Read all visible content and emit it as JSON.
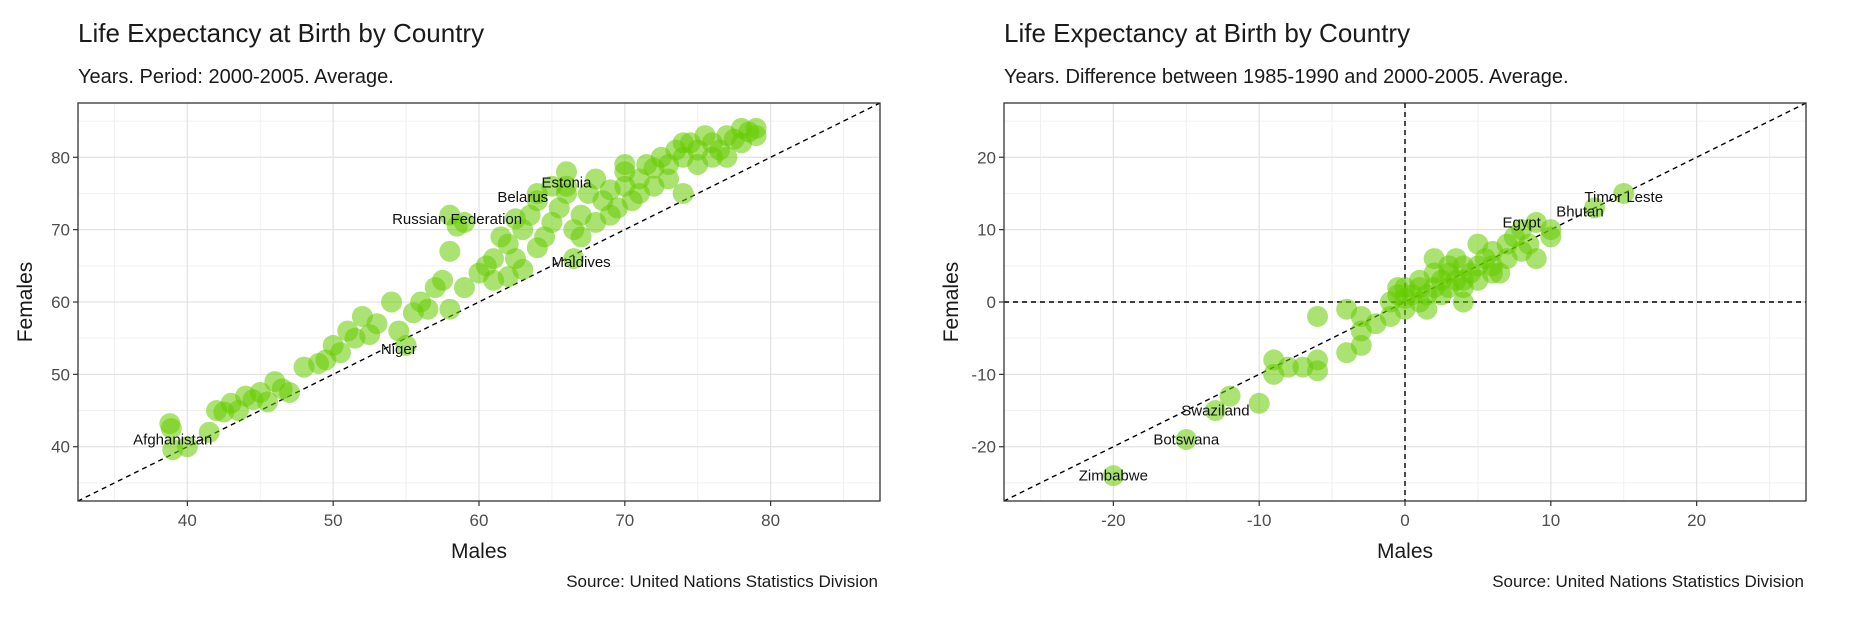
{
  "chart_data": [
    {
      "type": "scatter",
      "title": "Life Expectancy at Birth by Country",
      "subtitle": "Years. Period: 2000-2005. Average.",
      "caption": "Source: United Nations Statistics Division",
      "xlabel": "Males",
      "ylabel": "Females",
      "xlim": [
        32.5,
        87.5
      ],
      "ylim": [
        32.5,
        87.5
      ],
      "xticks": [
        40,
        50,
        60,
        70,
        80
      ],
      "yticks": [
        40,
        50,
        60,
        70,
        80
      ],
      "grid": true,
      "reference_lines": [
        {
          "type": "diagonal",
          "style": "dashed",
          "slope": 1,
          "intercept": 0
        }
      ],
      "point_color": "#66cc00",
      "points": [
        [
          38.8,
          43.2
        ],
        [
          38.9,
          42.5
        ],
        [
          39.0,
          39.6
        ],
        [
          40.0,
          40.0
        ],
        [
          41.5,
          42.0
        ],
        [
          42.0,
          45.0
        ],
        [
          42.5,
          44.8
        ],
        [
          43.0,
          46.0
        ],
        [
          43.5,
          45.0
        ],
        [
          44.0,
          47.0
        ],
        [
          44.5,
          46.5
        ],
        [
          45.0,
          47.5
        ],
        [
          45.5,
          46.2
        ],
        [
          46.0,
          49.0
        ],
        [
          46.5,
          48.0
        ],
        [
          47.0,
          47.5
        ],
        [
          48.0,
          51.0
        ],
        [
          49.0,
          51.5
        ],
        [
          49.5,
          52.0
        ],
        [
          50.0,
          54.0
        ],
        [
          50.5,
          53.0
        ],
        [
          51.0,
          56.0
        ],
        [
          51.5,
          55.0
        ],
        [
          52.0,
          58.0
        ],
        [
          52.5,
          55.5
        ],
        [
          53.0,
          57.0
        ],
        [
          54.0,
          60.0
        ],
        [
          54.5,
          56.0
        ],
        [
          55.0,
          54.0
        ],
        [
          55.5,
          58.5
        ],
        [
          56.0,
          60.0
        ],
        [
          56.5,
          59.0
        ],
        [
          57.0,
          62.0
        ],
        [
          57.5,
          63.0
        ],
        [
          58.0,
          59.0
        ],
        [
          58.0,
          72.0
        ],
        [
          58.0,
          67.0
        ],
        [
          59.0,
          71.0
        ],
        [
          59.0,
          62.0
        ],
        [
          60.0,
          64.0
        ],
        [
          60.5,
          65.0
        ],
        [
          61.0,
          66.0
        ],
        [
          61.0,
          63.0
        ],
        [
          61.5,
          69.0
        ],
        [
          62.0,
          68.0
        ],
        [
          62.0,
          63.5
        ],
        [
          62.5,
          66.0
        ],
        [
          63.0,
          70.0
        ],
        [
          63.0,
          64.5
        ],
        [
          63.5,
          72.0
        ],
        [
          64.0,
          74.0
        ],
        [
          64.0,
          67.5
        ],
        [
          64.5,
          69.0
        ],
        [
          65.0,
          71.0
        ],
        [
          65.0,
          76.0
        ],
        [
          65.5,
          73.0
        ],
        [
          66.0,
          78.0
        ],
        [
          66.0,
          75.0
        ],
        [
          66.5,
          70.0
        ],
        [
          66.5,
          66.0
        ],
        [
          67.0,
          72.0
        ],
        [
          67.0,
          69.0
        ],
        [
          67.5,
          75.0
        ],
        [
          68.0,
          71.0
        ],
        [
          68.0,
          77.0
        ],
        [
          68.5,
          74.0
        ],
        [
          69.0,
          72.0
        ],
        [
          69.0,
          75.5
        ],
        [
          69.5,
          73.0
        ],
        [
          70.0,
          76.0
        ],
        [
          70.0,
          78.0
        ],
        [
          70.5,
          74.0
        ],
        [
          71.0,
          75.0
        ],
        [
          71.0,
          77.0
        ],
        [
          71.5,
          79.0
        ],
        [
          72.0,
          76.0
        ],
        [
          72.0,
          78.5
        ],
        [
          72.5,
          80.0
        ],
        [
          73.0,
          77.0
        ],
        [
          73.0,
          79.0
        ],
        [
          73.5,
          81.0
        ],
        [
          74.0,
          75.0
        ],
        [
          74.0,
          80.0
        ],
        [
          74.5,
          82.0
        ],
        [
          75.0,
          79.0
        ],
        [
          75.0,
          81.0
        ],
        [
          75.5,
          83.0
        ],
        [
          76.0,
          80.0
        ],
        [
          76.0,
          82.0
        ],
        [
          76.5,
          81.0
        ],
        [
          77.0,
          83.0
        ],
        [
          77.0,
          80.0
        ],
        [
          77.5,
          82.5
        ],
        [
          78.0,
          84.0
        ],
        [
          78.0,
          82.0
        ],
        [
          78.5,
          83.5
        ],
        [
          79.0,
          83.0
        ],
        [
          79.0,
          84.0
        ],
        [
          58.5,
          70.5
        ],
        [
          62.5,
          71.5
        ],
        [
          64.0,
          75.0
        ],
        [
          66.0,
          76.0
        ],
        [
          70.0,
          79.0
        ],
        [
          74.0,
          82.0
        ]
      ],
      "labels": [
        {
          "text": "Afghanistan",
          "x": 39.0,
          "y": 41.0
        },
        {
          "text": "Niger",
          "x": 54.5,
          "y": 53.5
        },
        {
          "text": "Russian Federation",
          "x": 58.5,
          "y": 71.5
        },
        {
          "text": "Belarus",
          "x": 63.0,
          "y": 74.5
        },
        {
          "text": "Estonia",
          "x": 66.0,
          "y": 76.5
        },
        {
          "text": "Maldives",
          "x": 67.0,
          "y": 65.5
        }
      ]
    },
    {
      "type": "scatter",
      "title": "Life Expectancy at Birth by Country",
      "subtitle": "Years. Difference between 1985-1990 and 2000-2005. Average.",
      "caption": "Source: United Nations Statistics Division",
      "xlabel": "Males",
      "ylabel": "Females",
      "xlim": [
        -27.5,
        27.5
      ],
      "ylim": [
        -27.5,
        27.5
      ],
      "xticks": [
        -20,
        -10,
        0,
        10,
        20
      ],
      "yticks": [
        -20,
        -10,
        0,
        10,
        20
      ],
      "grid": true,
      "reference_lines": [
        {
          "type": "diagonal",
          "style": "dashed",
          "slope": 1,
          "intercept": 0
        },
        {
          "type": "vline",
          "style": "dashed",
          "x": 0
        },
        {
          "type": "hline",
          "style": "dashed",
          "y": 0
        }
      ],
      "point_color": "#66cc00",
      "points": [
        [
          -20.0,
          -24.0
        ],
        [
          -15.0,
          -19.0
        ],
        [
          -13.0,
          -15.0
        ],
        [
          -12.0,
          -13.0
        ],
        [
          -10.0,
          -14.0
        ],
        [
          -9.0,
          -10.0
        ],
        [
          -9.0,
          -8.0
        ],
        [
          -8.0,
          -9.0
        ],
        [
          -7.0,
          -9.0
        ],
        [
          -6.0,
          -8.0
        ],
        [
          -6.0,
          -9.5
        ],
        [
          -6.0,
          -2.0
        ],
        [
          -4.0,
          -7.0
        ],
        [
          -4.0,
          -1.0
        ],
        [
          -3.0,
          -6.0
        ],
        [
          -3.0,
          -4.0
        ],
        [
          -3.0,
          -2.0
        ],
        [
          -2.0,
          -3.0
        ],
        [
          -1.0,
          -2.0
        ],
        [
          -1.0,
          0.0
        ],
        [
          -0.5,
          1.0
        ],
        [
          -0.5,
          2.0
        ],
        [
          0.0,
          -1.0
        ],
        [
          0.0,
          0.5
        ],
        [
          0.0,
          2.0
        ],
        [
          0.5,
          1.0
        ],
        [
          1.0,
          0.0
        ],
        [
          1.0,
          2.0
        ],
        [
          1.0,
          3.0
        ],
        [
          1.5,
          -1.0
        ],
        [
          1.5,
          1.0
        ],
        [
          2.0,
          2.0
        ],
        [
          2.0,
          4.0
        ],
        [
          2.0,
          6.0
        ],
        [
          2.5,
          3.0
        ],
        [
          2.5,
          1.0
        ],
        [
          3.0,
          2.0
        ],
        [
          3.0,
          4.0
        ],
        [
          3.0,
          5.0
        ],
        [
          3.5,
          3.0
        ],
        [
          3.5,
          6.0
        ],
        [
          4.0,
          2.0
        ],
        [
          4.0,
          0.0
        ],
        [
          4.0,
          3.0
        ],
        [
          4.0,
          5.0
        ],
        [
          4.5,
          4.0
        ],
        [
          5.0,
          3.0
        ],
        [
          5.0,
          5.0
        ],
        [
          5.0,
          8.0
        ],
        [
          5.5,
          6.0
        ],
        [
          6.0,
          5.0
        ],
        [
          6.0,
          7.0
        ],
        [
          6.5,
          4.0
        ],
        [
          7.0,
          6.0
        ],
        [
          7.0,
          8.0
        ],
        [
          7.5,
          9.0
        ],
        [
          8.0,
          10.0
        ],
        [
          8.5,
          8.0
        ],
        [
          9.0,
          6.0
        ],
        [
          9.0,
          11.0
        ],
        [
          10.0,
          10.0
        ],
        [
          10.0,
          9.0
        ],
        [
          13.0,
          13.0
        ],
        [
          15.0,
          15.0
        ],
        [
          8.0,
          7.0
        ],
        [
          6.0,
          4.0
        ]
      ],
      "labels": [
        {
          "text": "Zimbabwe",
          "x": -20.0,
          "y": -24.0
        },
        {
          "text": "Botswana",
          "x": -15.0,
          "y": -19.0
        },
        {
          "text": "Swaziland",
          "x": -13.0,
          "y": -15.0
        },
        {
          "text": "Egypt",
          "x": 8.0,
          "y": 11.0
        },
        {
          "text": "Bhutan",
          "x": 12.0,
          "y": 12.5
        },
        {
          "text": "Timor Leste",
          "x": 15.0,
          "y": 14.5
        }
      ]
    }
  ]
}
